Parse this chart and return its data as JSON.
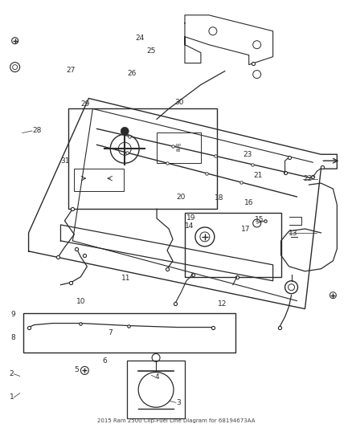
{
  "title": "2015 Ram 2500 Clip-Fuel Line Diagram for 68194673AA",
  "background_color": "#ffffff",
  "line_color": "#2a2a2a",
  "fig_width": 4.38,
  "fig_height": 5.33,
  "dpi": 100,
  "label_positions": {
    "1": [
      0.038,
      0.93,
      "right"
    ],
    "2": [
      0.038,
      0.875,
      "right"
    ],
    "3": [
      0.5,
      0.942,
      "left"
    ],
    "4": [
      0.44,
      0.882,
      "left"
    ],
    "5": [
      0.21,
      0.865,
      "left"
    ],
    "6": [
      0.29,
      0.845,
      "left"
    ],
    "7": [
      0.305,
      0.778,
      "left"
    ],
    "8": [
      0.042,
      0.79,
      "right"
    ],
    "9": [
      0.042,
      0.735,
      "right"
    ],
    "10": [
      0.215,
      0.706,
      "left"
    ],
    "11": [
      0.345,
      0.65,
      "left"
    ],
    "12": [
      0.62,
      0.71,
      "left"
    ],
    "13": [
      0.82,
      0.545,
      "left"
    ],
    "14": [
      0.525,
      0.528,
      "left"
    ],
    "15": [
      0.725,
      0.513,
      "left"
    ],
    "16": [
      0.695,
      0.473,
      "left"
    ],
    "17": [
      0.685,
      0.535,
      "left"
    ],
    "18": [
      0.61,
      0.462,
      "left"
    ],
    "19": [
      0.53,
      0.51,
      "left"
    ],
    "20": [
      0.5,
      0.46,
      "left"
    ],
    "21": [
      0.72,
      0.41,
      "left"
    ],
    "22": [
      0.862,
      0.418,
      "left"
    ],
    "23": [
      0.69,
      0.36,
      "left"
    ],
    "24": [
      0.385,
      0.088,
      "left"
    ],
    "25": [
      0.415,
      0.118,
      "left"
    ],
    "26": [
      0.362,
      0.17,
      "left"
    ],
    "27": [
      0.186,
      0.163,
      "left"
    ],
    "28": [
      0.09,
      0.305,
      "left"
    ],
    "29": [
      0.228,
      0.242,
      "left"
    ],
    "30": [
      0.497,
      0.238,
      "left"
    ],
    "31": [
      0.17,
      0.376,
      "left"
    ]
  }
}
